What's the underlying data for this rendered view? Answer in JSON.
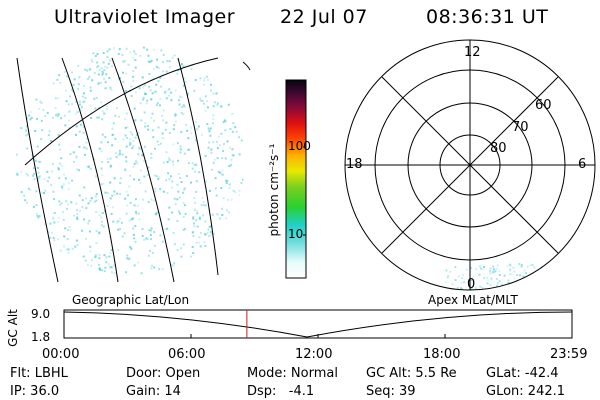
{
  "header": {
    "instrument": "Ultraviolet Imager",
    "date": "22 Jul 07",
    "time": "08:36:31 UT"
  },
  "colorbar": {
    "unit_label": "photon cm⁻²s⁻¹",
    "tick_labels": [
      "100",
      "10"
    ]
  },
  "polar_plot": {
    "mlt_labels": [
      "12",
      "18",
      "6",
      "0"
    ],
    "lat_labels": [
      "60",
      "70",
      "80"
    ]
  },
  "timeline": {
    "left_title": "Geographic Lat/Lon",
    "right_title": "Apex MLat/MLT",
    "axis_label": "GC Alt",
    "y_ticks": [
      "9.0",
      "1.8"
    ],
    "x_ticks": [
      "00:00",
      "06:00",
      "12:00",
      "18:00",
      "23:59"
    ],
    "current_time_fraction": 0.36
  },
  "status": {
    "row1": [
      "Flt: LBHL",
      "Door: Open",
      "Mode: Normal",
      "GC Alt: 5.5 Re",
      "GLat: -42.4"
    ],
    "row2": [
      "IP: 36.0",
      "Gain: 14",
      "Dsp:   -4.1",
      "Seq: 39",
      "GLon: 242.1"
    ]
  },
  "colors": {
    "emission": "#5ed0d8",
    "marker": "#c82020",
    "grid": "#000000"
  }
}
